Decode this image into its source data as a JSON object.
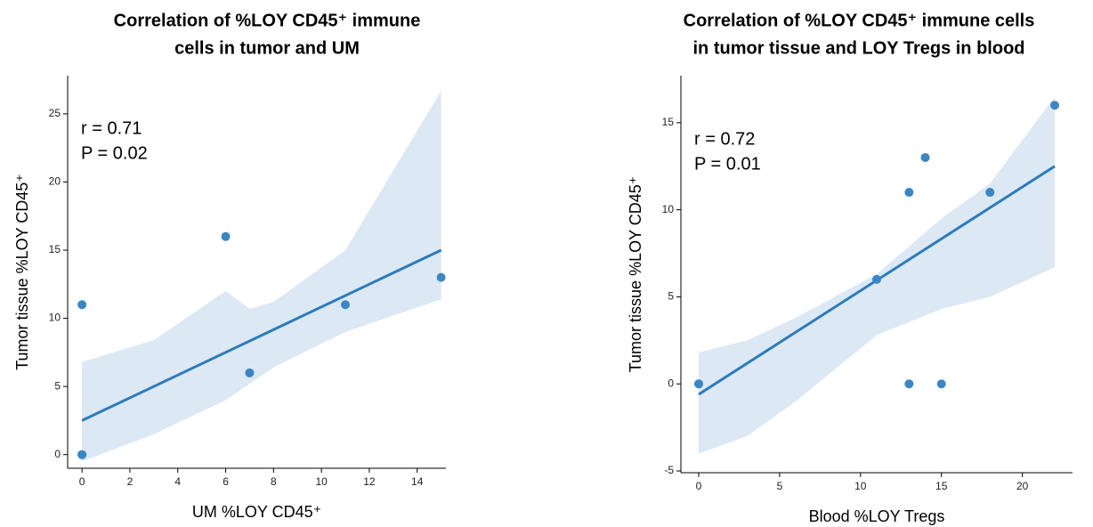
{
  "chart_data": [
    {
      "type": "scatter",
      "title": [
        "Correlation of %LOY CD45⁺ immune",
        "cells in tumor and UM"
      ],
      "x_label": "UM %LOY CD45⁺",
      "y_label": "Tumor tissue %LOY CD45⁺",
      "annotations": [
        "r = 0.71",
        "P = 0.02"
      ],
      "x": [
        0,
        0,
        0,
        6,
        7,
        11,
        15
      ],
      "values": [
        0,
        0,
        11,
        16,
        6,
        11,
        13
      ],
      "color": "#3a87c3",
      "fit": {
        "x": [
          0,
          15
        ],
        "values": [
          2.5,
          15
        ],
        "color": "#2b7bba"
      },
      "band": {
        "x": [
          0,
          3,
          6,
          7,
          8,
          11,
          15
        ],
        "upper": [
          6.8,
          8.4,
          12.0,
          10.7,
          11.2,
          15.0,
          26.7
        ],
        "lower": [
          -0.5,
          1.5,
          4.0,
          5.2,
          6.4,
          9.0,
          11.4
        ],
        "color": "#dce8f4"
      },
      "xlim": [
        -0.6,
        15.2
      ],
      "ylim": [
        -1,
        27.8
      ],
      "xticks": [
        0,
        2,
        4,
        6,
        8,
        10,
        12,
        14
      ],
      "yticks": [
        0,
        5,
        10,
        15,
        20,
        25
      ]
    },
    {
      "type": "scatter",
      "title": [
        "Correlation of %LOY CD45⁺ immune cells",
        "in tumor tissue and LOY Tregs in blood"
      ],
      "x_label": "Blood %LOY Tregs",
      "y_label": "Tumor tissue %LOY CD45⁺",
      "annotations": [
        "r = 0.72",
        "P = 0.01"
      ],
      "x": [
        0,
        0,
        11,
        13,
        14,
        13,
        15,
        18,
        22
      ],
      "values": [
        0,
        0,
        6,
        11,
        13,
        0,
        0,
        11,
        16
      ],
      "color": "#3a87c3",
      "fit": {
        "x": [
          0,
          22
        ],
        "values": [
          -0.6,
          12.5
        ],
        "color": "#2b7bba"
      },
      "band": {
        "x": [
          0,
          3,
          6,
          11,
          15,
          18,
          22
        ],
        "upper": [
          1.8,
          2.5,
          3.8,
          6.3,
          9.5,
          11.5,
          16.5
        ],
        "lower": [
          -4.0,
          -3.0,
          -1.0,
          2.8,
          4.3,
          5.0,
          6.7
        ],
        "color": "#dce8f4"
      },
      "xlim": [
        -1.1,
        23.1
      ],
      "ylim": [
        -5.1,
        17.7
      ],
      "xticks": [
        0,
        5,
        10,
        15,
        20
      ],
      "yticks": [
        -5,
        0,
        5,
        10,
        15
      ]
    }
  ]
}
